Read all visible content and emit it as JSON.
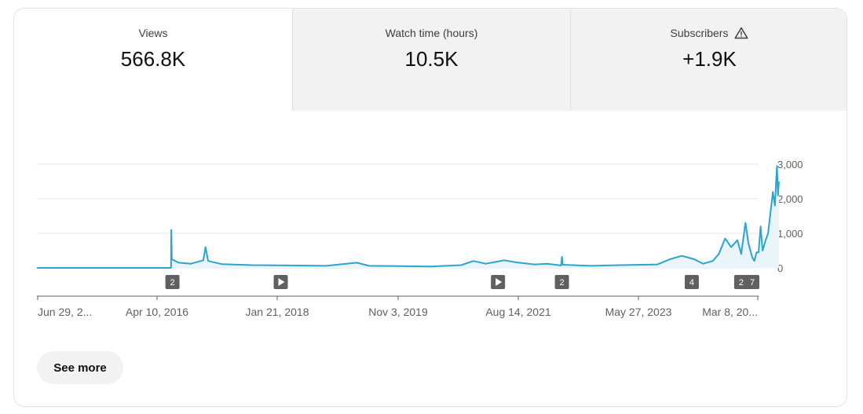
{
  "metrics": [
    {
      "label": "Views",
      "value": "566.8K"
    },
    {
      "label": "Watch time (hours)",
      "value": "10.5K"
    },
    {
      "label": "Subscribers",
      "value": "+1.9K",
      "icon": "warning-icon"
    }
  ],
  "see_more_label": "See more",
  "colors": {
    "line": "#2ba4cf",
    "area": "#eaf5f9",
    "marker": "#606060"
  },
  "chart_data": {
    "type": "line",
    "x_type": "date",
    "xlim": [
      "2014-06-29",
      "2024-04-15"
    ],
    "ylim": [
      0,
      3000
    ],
    "y_axis_position": "right",
    "y_ticks": [
      "3,000",
      "2,000",
      "1,000",
      "0"
    ],
    "x_ticks": [
      "Jun 29, 2...",
      "Apr 10, 2016",
      "Jan 21, 2018",
      "Nov 3, 2019",
      "Aug 14, 2021",
      "May 27, 2023",
      "Mar 8, 20..."
    ],
    "grid": true,
    "series": [
      {
        "points": [
          [
            "2014-06-29",
            0
          ],
          [
            "2016-04-24",
            0
          ],
          [
            "2016-04-25",
            1100
          ],
          [
            "2016-04-28",
            250
          ],
          [
            "2016-06-01",
            150
          ],
          [
            "2016-08-01",
            120
          ],
          [
            "2016-10-01",
            220
          ],
          [
            "2016-10-12",
            600
          ],
          [
            "2016-10-25",
            200
          ],
          [
            "2017-01-01",
            110
          ],
          [
            "2017-06-01",
            80
          ],
          [
            "2017-12-01",
            70
          ],
          [
            "2018-06-01",
            60
          ],
          [
            "2018-11-01",
            150
          ],
          [
            "2019-01-01",
            60
          ],
          [
            "2019-06-01",
            50
          ],
          [
            "2019-11-03",
            40
          ],
          [
            "2020-04-01",
            80
          ],
          [
            "2020-06-01",
            200
          ],
          [
            "2020-08-01",
            120
          ],
          [
            "2020-11-01",
            220
          ],
          [
            "2021-01-01",
            160
          ],
          [
            "2021-04-01",
            100
          ],
          [
            "2021-06-01",
            120
          ],
          [
            "2021-08-10",
            70
          ],
          [
            "2021-08-14",
            320
          ],
          [
            "2021-08-18",
            90
          ],
          [
            "2022-01-01",
            60
          ],
          [
            "2022-06-01",
            80
          ],
          [
            "2022-12-01",
            100
          ],
          [
            "2023-02-01",
            250
          ],
          [
            "2023-04-01",
            350
          ],
          [
            "2023-06-01",
            250
          ],
          [
            "2023-07-15",
            120
          ],
          [
            "2023-09-01",
            200
          ],
          [
            "2023-10-01",
            400
          ],
          [
            "2023-11-01",
            850
          ],
          [
            "2023-12-01",
            600
          ],
          [
            "2024-01-01",
            800
          ],
          [
            "2024-01-20",
            400
          ],
          [
            "2024-02-10",
            1300
          ],
          [
            "2024-02-25",
            700
          ],
          [
            "2024-03-15",
            300
          ],
          [
            "2024-03-25",
            200
          ],
          [
            "2024-04-05",
            450
          ],
          [
            "2024-04-15",
            450
          ],
          [
            "2024-04-25",
            1200
          ],
          [
            "2024-05-05",
            500
          ],
          [
            "2024-05-20",
            800
          ],
          [
            "2024-06-01",
            1000
          ],
          [
            "2024-06-15",
            1700
          ],
          [
            "2024-06-25",
            2200
          ],
          [
            "2024-07-05",
            1800
          ],
          [
            "2024-07-15",
            2950
          ],
          [
            "2024-07-20",
            2100
          ],
          [
            "2024-07-25",
            2500
          ]
        ]
      }
    ],
    "markers": [
      {
        "date": "2016-05-01",
        "type": "count",
        "label": "2"
      },
      {
        "date": "2017-10-20",
        "type": "play",
        "label": ""
      },
      {
        "date": "2020-10-01",
        "type": "play",
        "label": ""
      },
      {
        "date": "2021-08-14",
        "type": "count",
        "label": "2"
      },
      {
        "date": "2023-05-20",
        "type": "count",
        "label": "4"
      },
      {
        "date": "2024-01-20",
        "type": "count",
        "label": "2"
      },
      {
        "date": "2024-07-20",
        "type": "count",
        "label": "7"
      }
    ]
  }
}
